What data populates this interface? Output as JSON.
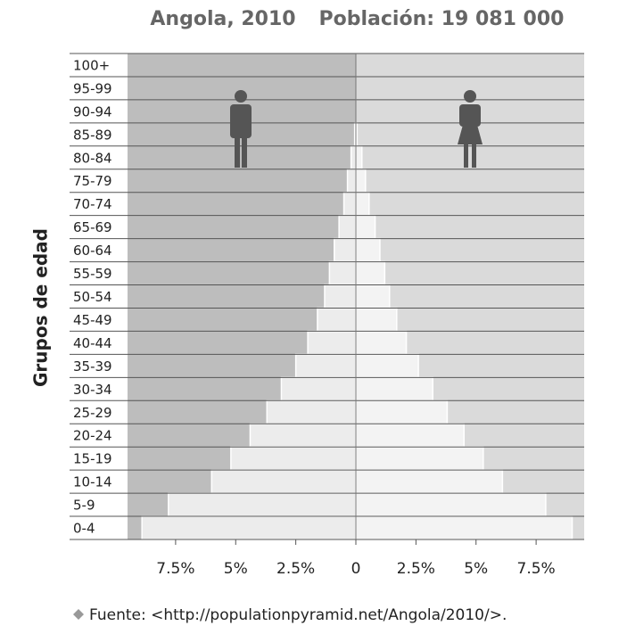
{
  "chart_data": {
    "type": "pyramid",
    "title": "Angola, 2010",
    "subtitle": "Población: 19 081 000",
    "y_label": "Grupos de edad",
    "source": "Fuente: <http://populationpyramid.net/Angola/2010/>.",
    "categories": [
      "0-4",
      "5-9",
      "10-14",
      "15-19",
      "20-24",
      "25-29",
      "30-34",
      "35-39",
      "40-44",
      "45-49",
      "50-54",
      "55-59",
      "60-64",
      "65-69",
      "70-74",
      "75-79",
      "80-84",
      "85-89",
      "90-94",
      "95-99",
      "100+"
    ],
    "series": [
      {
        "color": "#ececec",
        "background": "#bdbdbd",
        "values": [
          8.9,
          7.8,
          6.0,
          5.2,
          4.4,
          3.7,
          3.1,
          2.5,
          2.0,
          1.6,
          1.3,
          1.1,
          0.9,
          0.7,
          0.5,
          0.35,
          0.2,
          0.05,
          0,
          0,
          0
        ]
      },
      {
        "color": "#f3f3f3",
        "background": "#dadada",
        "values": [
          9.0,
          7.9,
          6.1,
          5.3,
          4.5,
          3.8,
          3.2,
          2.6,
          2.1,
          1.7,
          1.4,
          1.2,
          1.0,
          0.8,
          0.55,
          0.4,
          0.25,
          0.05,
          0,
          0,
          0
        ]
      }
    ],
    "xlim": [
      -9.5,
      9.5
    ],
    "xticks": [
      {
        "value": -7.5,
        "label": "7.5%"
      },
      {
        "value": -5,
        "label": "5%"
      },
      {
        "value": -2.5,
        "label": "2.5%"
      },
      0,
      {
        "value": 2.5,
        "label": "2.5%"
      },
      {
        "value": 5,
        "label": "5%"
      },
      {
        "value": 7.5,
        "label": "7.5%"
      }
    ]
  }
}
